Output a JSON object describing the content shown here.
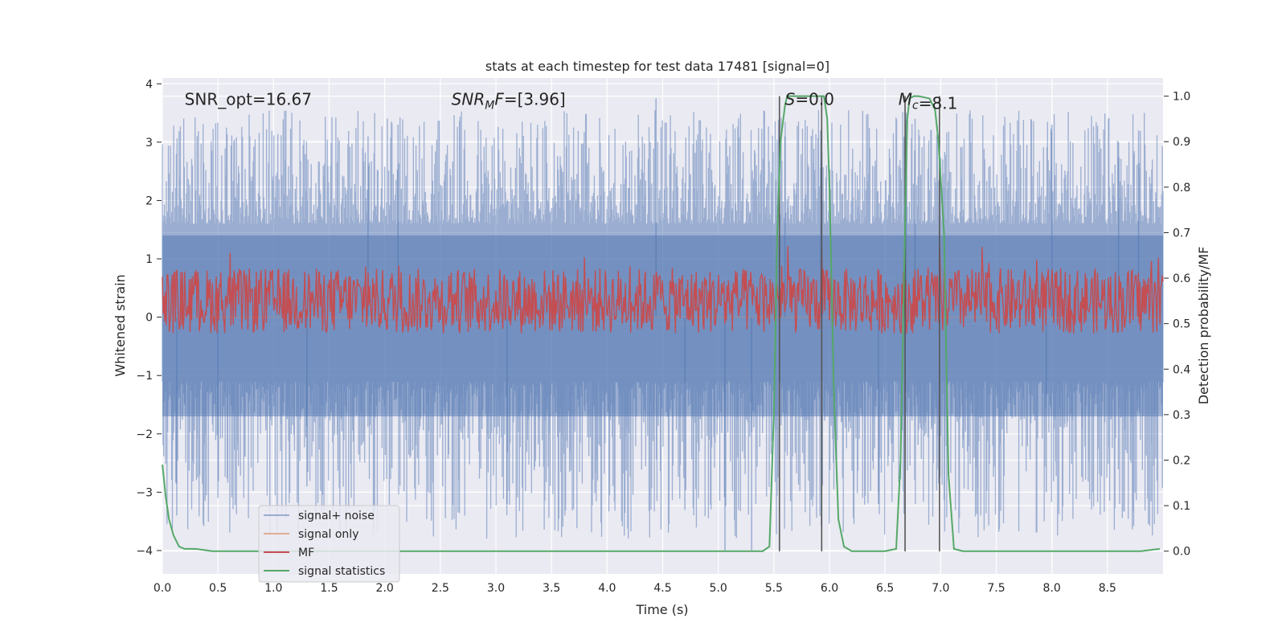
{
  "chart_data": {
    "type": "line",
    "title": "stats at each timestep for test data 17481 [signal=0]",
    "xlabel": "Time (s)",
    "ylabel": "Whitened strain",
    "y2label": "Detection probability/MF",
    "xlim": [
      0,
      9.0
    ],
    "ylim": [
      -4.4,
      4.1
    ],
    "y2lim": [
      -0.05,
      1.04
    ],
    "x_ticks": [
      "0.0",
      "0.5",
      "1.0",
      "1.5",
      "2.0",
      "2.5",
      "3.0",
      "3.5",
      "4.0",
      "4.5",
      "5.0",
      "5.5",
      "6.0",
      "6.5",
      "7.0",
      "7.5",
      "8.0",
      "8.5"
    ],
    "y_ticks": [
      "−4",
      "−3",
      "−2",
      "−1",
      "0",
      "1",
      "2",
      "3",
      "4"
    ],
    "y2_ticks": [
      "0.0",
      "0.1",
      "0.2",
      "0.3",
      "0.4",
      "0.5",
      "0.6",
      "0.7",
      "0.8",
      "0.9",
      "1.0"
    ],
    "grid": true,
    "legend_position": "lower-left",
    "annotations": [
      {
        "text": "SNR_opt=16.67",
        "x": 0.2,
        "y": 3.75
      },
      {
        "text": "SNR_MF=[3.96]",
        "x": 2.6,
        "y": 3.75
      },
      {
        "text": "S=0.0",
        "x": 5.6,
        "y": 3.75
      },
      {
        "text": "M_c=8.1",
        "x": 6.62,
        "y": 3.75
      }
    ],
    "vlines": [
      5.55,
      5.93,
      6.68,
      6.99
    ],
    "series": [
      {
        "name": "signal+ noise",
        "color": "#4c72b0",
        "opacity": 0.5,
        "noise_band": {
          "typical_range": [
            -1.6,
            2.1
          ],
          "extreme_min": -4.0,
          "extreme_max": 3.75
        },
        "extreme_spikes": [
          [
            0.13,
            -3.4
          ],
          [
            0.5,
            -3.1
          ],
          [
            1.3,
            -2.9
          ],
          [
            1.85,
            3.1
          ],
          [
            2.12,
            3.3
          ],
          [
            3.1,
            -3.2
          ],
          [
            4.44,
            3.75
          ],
          [
            4.7,
            -3.3
          ],
          [
            5.06,
            -4.0
          ],
          [
            5.3,
            -4.0
          ],
          [
            5.6,
            3.1
          ],
          [
            5.92,
            3.2
          ],
          [
            6.44,
            -3.2
          ],
          [
            6.69,
            3.5
          ],
          [
            6.77,
            3.4
          ],
          [
            7.95,
            -3.0
          ],
          [
            8.0,
            3.3
          ],
          [
            8.6,
            3.0
          ],
          [
            8.78,
            3.2
          ]
        ]
      },
      {
        "name": "signal only",
        "color": "#dd8452",
        "values_note": "flat zero"
      },
      {
        "name": "MF",
        "color": "#c44e52",
        "axis": "right",
        "band": {
          "center": 0.55,
          "range": [
            0.52,
            0.6
          ]
        }
      },
      {
        "name": "signal statistics",
        "color": "#55a868",
        "axis": "right",
        "x": [
          0.0,
          0.03,
          0.06,
          0.1,
          0.15,
          0.2,
          0.3,
          0.45,
          0.6,
          1.0,
          2.0,
          3.0,
          4.0,
          5.0,
          5.4,
          5.46,
          5.5,
          5.53,
          5.56,
          5.6,
          5.62,
          5.65,
          5.95,
          5.98,
          6.0,
          6.04,
          6.08,
          6.13,
          6.2,
          6.5,
          6.6,
          6.64,
          6.67,
          6.7,
          6.72,
          6.76,
          6.8,
          6.9,
          6.95,
          6.98,
          7.03,
          7.07,
          7.12,
          7.2,
          8.0,
          8.5,
          8.8,
          8.97
        ],
        "values": [
          0.19,
          0.12,
          0.07,
          0.035,
          0.01,
          0.005,
          0.005,
          0.0,
          0.0,
          0.0,
          0.0,
          0.0,
          0.0,
          0.0,
          0.0,
          0.01,
          0.3,
          0.7,
          0.9,
          0.98,
          1.0,
          1.0,
          1.0,
          0.95,
          0.8,
          0.35,
          0.07,
          0.01,
          0.0,
          0.0,
          0.005,
          0.2,
          0.6,
          0.95,
          0.995,
          1.0,
          1.0,
          0.995,
          0.97,
          0.9,
          0.7,
          0.17,
          0.005,
          0.0,
          0.0,
          0.0,
          0.0,
          0.005
        ]
      }
    ]
  }
}
